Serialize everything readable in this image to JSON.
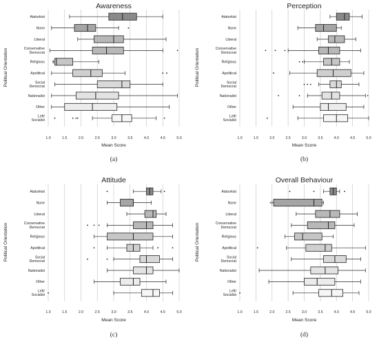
{
  "chart_data": [
    {
      "type": "boxplot",
      "title": "Awareness",
      "panel_label": "(a)",
      "xlabel": "Mean Score",
      "ylabel": "Political Orientation",
      "xlim": [
        1.0,
        5.0
      ],
      "xticks": [
        "1.0",
        "1.5",
        "2.0",
        "2.5",
        "3.0",
        "3.5",
        "4.0",
        "4.5",
        "5.0"
      ],
      "grid": true,
      "categories": [
        "Ataturkist",
        "None",
        "Liberal",
        "Conservative Democrat",
        "Religious",
        "Apolitical",
        "Social Democrat",
        "Nationalist",
        "Other",
        "Left/ Socialist"
      ],
      "boxes": [
        {
          "min": 1.65,
          "q1": 2.85,
          "median": 3.27,
          "q3": 3.7,
          "max": 4.5,
          "outliers": []
        },
        {
          "min": 1.1,
          "q1": 1.8,
          "median": 2.2,
          "q3": 2.45,
          "max": 3.15,
          "outliers": [
            3.45
          ]
        },
        {
          "min": 1.9,
          "q1": 2.4,
          "median": 3.0,
          "q3": 3.3,
          "max": 4.6,
          "outliers": []
        },
        {
          "min": 1.05,
          "q1": 2.35,
          "median": 2.78,
          "q3": 3.3,
          "max": 4.5,
          "outliers": [
            4.95
          ]
        },
        {
          "min": 1.15,
          "q1": 1.2,
          "median": 1.25,
          "q3": 1.75,
          "max": 2.55,
          "outliers": [
            1.15
          ]
        },
        {
          "min": 1.1,
          "q1": 1.75,
          "median": 2.3,
          "q3": 2.65,
          "max": 3.35,
          "outliers": [
            4.5,
            4.62
          ]
        },
        {
          "min": 1.2,
          "q1": 2.5,
          "median": 3.25,
          "q3": 3.5,
          "max": 4.5,
          "outliers": []
        },
        {
          "min": 1.1,
          "q1": 1.85,
          "median": 2.45,
          "q3": 3.15,
          "max": 4.95,
          "outliers": []
        },
        {
          "min": 1.1,
          "q1": 1.5,
          "median": 2.35,
          "q3": 3.1,
          "max": 4.7,
          "outliers": []
        },
        {
          "min": 2.35,
          "q1": 2.95,
          "median": 3.25,
          "q3": 3.55,
          "max": 4.3,
          "outliers": [
            1.2,
            1.75,
            1.85,
            1.9,
            4.55
          ]
        }
      ]
    },
    {
      "type": "boxplot",
      "title": "Perception",
      "panel_label": "(b)",
      "xlabel": "Mean Score",
      "ylabel": "Political Orientation",
      "xlim": [
        1.0,
        5.0
      ],
      "xticks": [
        "1.0",
        "1.5",
        "2.0",
        "2.5",
        "3.0",
        "3.5",
        "4.0",
        "4.5",
        "5.0"
      ],
      "grid": true,
      "categories": [
        "Ataturkist",
        "None",
        "Liberal",
        "Conservative Democrat",
        "Religious",
        "Apolitical",
        "Social Democrat",
        "Nationalist",
        "Other",
        "Left/ Socialist"
      ],
      "boxes": [
        {
          "min": 3.8,
          "q1": 4.0,
          "median": 4.25,
          "q3": 4.4,
          "max": 4.8,
          "outliers": []
        },
        {
          "min": 2.8,
          "q1": 3.35,
          "median": 3.6,
          "q3": 4.0,
          "max": 4.15,
          "outliers": []
        },
        {
          "min": 3.4,
          "q1": 3.75,
          "median": 3.95,
          "q3": 4.25,
          "max": 4.6,
          "outliers": []
        },
        {
          "min": 2.5,
          "q1": 3.45,
          "median": 3.75,
          "q3": 4.1,
          "max": 4.75,
          "outliers": [
            1.8,
            2.1,
            2.4
          ]
        },
        {
          "min": 3.0,
          "q1": 3.6,
          "median": 3.85,
          "q3": 4.1,
          "max": 4.4,
          "outliers": [
            2.85,
            2.95
          ]
        },
        {
          "min": 2.55,
          "q1": 3.4,
          "median": 3.9,
          "q3": 4.45,
          "max": 4.85,
          "outliers": [
            2.05
          ]
        },
        {
          "min": 3.45,
          "q1": 3.8,
          "median": 4.0,
          "q3": 4.15,
          "max": 4.7,
          "outliers": [
            3.0,
            3.1,
            3.2
          ]
        },
        {
          "min": 3.1,
          "q1": 3.55,
          "median": 3.85,
          "q3": 4.1,
          "max": 4.9,
          "outliers": [
            2.2,
            2.85,
            4.97
          ]
        },
        {
          "min": 2.65,
          "q1": 3.5,
          "median": 3.75,
          "q3": 4.3,
          "max": 4.85,
          "outliers": []
        },
        {
          "min": 2.8,
          "q1": 3.6,
          "median": 4.0,
          "q3": 4.35,
          "max": 5.0,
          "outliers": [
            1.85
          ]
        }
      ]
    },
    {
      "type": "boxplot",
      "title": "Attitude",
      "panel_label": "(c)",
      "xlabel": "Mean Score",
      "ylabel": "Political Orientation",
      "xlim": [
        1.0,
        5.0
      ],
      "xticks": [
        "1.0",
        "1.5",
        "2.0",
        "2.5",
        "3.0",
        "3.5",
        "4.0",
        "4.5",
        "5.0"
      ],
      "grid": true,
      "categories": [
        "Ataturkist",
        "None",
        "Liberal",
        "Conservative Democrat",
        "Religious",
        "Apolitical",
        "Social Democrat",
        "Nationalist",
        "Other",
        "Left/ Socialist"
      ],
      "boxes": [
        {
          "min": 3.6,
          "q1": 4.0,
          "median": 4.1,
          "q3": 4.2,
          "max": 4.45,
          "outliers": [
            2.8,
            4.55
          ]
        },
        {
          "min": 2.8,
          "q1": 3.2,
          "median": 3.6,
          "q3": 3.6,
          "max": 4.15,
          "outliers": []
        },
        {
          "min": 3.4,
          "q1": 3.95,
          "median": 4.2,
          "q3": 4.3,
          "max": 4.6,
          "outliers": []
        },
        {
          "min": 2.8,
          "q1": 3.6,
          "median": 4.0,
          "q3": 4.2,
          "max": 4.8,
          "outliers": [
            2.2,
            2.4,
            2.55
          ]
        },
        {
          "min": 2.4,
          "q1": 2.8,
          "median": 3.6,
          "q3": 4.2,
          "max": 4.8,
          "outliers": []
        },
        {
          "min": 2.8,
          "q1": 3.4,
          "median": 3.6,
          "q3": 3.8,
          "max": 4.2,
          "outliers": [
            2.4,
            4.35,
            4.8
          ]
        },
        {
          "min": 3.0,
          "q1": 3.8,
          "median": 4.0,
          "q3": 4.4,
          "max": 4.8,
          "outliers": [
            2.2,
            2.8
          ]
        },
        {
          "min": 2.8,
          "q1": 3.6,
          "median": 4.0,
          "q3": 4.2,
          "max": 5.0,
          "outliers": []
        },
        {
          "min": 2.4,
          "q1": 3.2,
          "median": 3.6,
          "q3": 3.8,
          "max": 4.6,
          "outliers": []
        },
        {
          "min": 3.0,
          "q1": 3.85,
          "median": 4.2,
          "q3": 4.4,
          "max": 4.8,
          "outliers": [
            1.0
          ]
        }
      ]
    },
    {
      "type": "boxplot",
      "title": "Overall Behaviour",
      "panel_label": "(d)",
      "xlabel": "Mean Score",
      "ylabel": "Political Orientation",
      "xlim": [
        1.0,
        5.0
      ],
      "xticks": [
        "1.0",
        "1.5",
        "2.0",
        "2.5",
        "3.0",
        "3.5",
        "4.0",
        "4.5",
        "5.0"
      ],
      "grid": true,
      "categories": [
        "Ataturkist",
        "None",
        "Liberal",
        "Conservative Democrat",
        "Religious",
        "Apolitical",
        "Social Democrat",
        "Nationalist",
        "Other",
        "Left/ Socialist"
      ],
      "boxes": [
        {
          "min": 3.6,
          "q1": 3.8,
          "median": 3.9,
          "q3": 4.0,
          "max": 4.1,
          "outliers": [
            2.55,
            3.3,
            4.25
          ]
        },
        {
          "min": 2.0,
          "q1": 2.05,
          "median": 3.3,
          "q3": 3.55,
          "max": 3.6,
          "outliers": [
            1.95
          ]
        },
        {
          "min": 2.75,
          "q1": 3.35,
          "median": 3.8,
          "q3": 4.1,
          "max": 4.65,
          "outliers": []
        },
        {
          "min": 2.6,
          "q1": 3.1,
          "median": 3.75,
          "q3": 3.95,
          "max": 4.55,
          "outliers": []
        },
        {
          "min": 2.4,
          "q1": 2.7,
          "median": 2.95,
          "q3": 3.55,
          "max": 3.9,
          "outliers": []
        },
        {
          "min": 2.45,
          "q1": 3.05,
          "median": 3.65,
          "q3": 3.85,
          "max": 4.9,
          "outliers": [
            1.55
          ]
        },
        {
          "min": 2.6,
          "q1": 3.6,
          "median": 3.95,
          "q3": 4.3,
          "max": 4.75,
          "outliers": []
        },
        {
          "min": 1.6,
          "q1": 3.2,
          "median": 3.65,
          "q3": 4.05,
          "max": 4.9,
          "outliers": []
        },
        {
          "min": 1.9,
          "q1": 3.0,
          "median": 3.4,
          "q3": 3.95,
          "max": 4.75,
          "outliers": []
        },
        {
          "min": 2.65,
          "q1": 3.45,
          "median": 3.85,
          "q3": 4.2,
          "max": 4.7,
          "outliers": [
            1.0
          ]
        }
      ]
    }
  ],
  "colors": {
    "box_fills": [
      "#8a8a8a",
      "#a5a5a5",
      "#b8b8b8",
      "#b8b8b8",
      "#c6c6c6",
      "#cfcfcf",
      "#d9d9d9",
      "#e3e3e3",
      "#ececec",
      "#f6f6f6"
    ],
    "stroke": "#222222",
    "grid": "#c8c8c8"
  }
}
